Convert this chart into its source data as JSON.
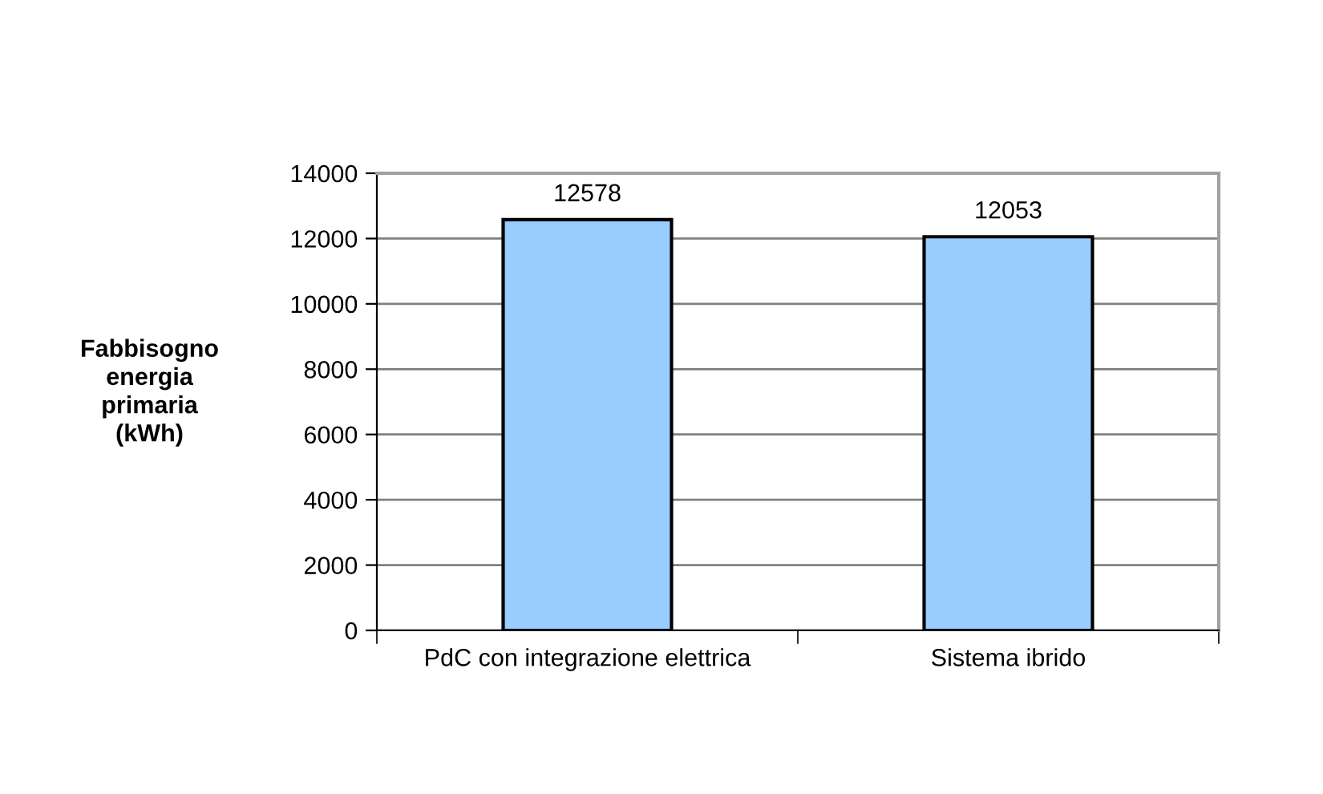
{
  "chart_data": {
    "type": "bar",
    "ylabel": "Fabbisogno energia primaria (kWh)",
    "categories": [
      "PdC con integrazione elettrica",
      "Sistema ibrido"
    ],
    "values": [
      12578,
      12053
    ],
    "color": "#99ccff",
    "ylim": [
      0,
      14000
    ],
    "yticks": [
      0,
      2000,
      4000,
      6000,
      8000,
      10000,
      12000,
      14000
    ],
    "grid": "y",
    "data_labels": true
  }
}
